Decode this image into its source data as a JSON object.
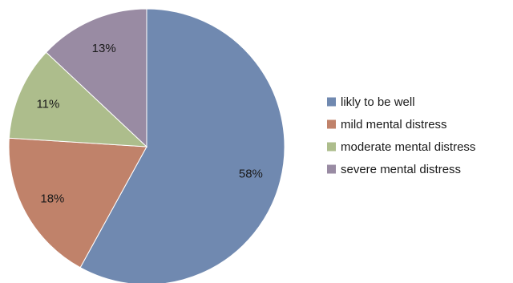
{
  "chart_data": {
    "type": "pie",
    "title": "",
    "legend_position": "right",
    "start_angle_deg": 0,
    "direction": "clockwise",
    "slices": [
      {
        "name": "likly to be well",
        "value": 58,
        "label": "58%",
        "color": "#7089b0"
      },
      {
        "name": "mild mental distress",
        "value": 18,
        "label": "18%",
        "color": "#c0826a"
      },
      {
        "name": "moderate mental distress",
        "value": 11,
        "label": "11%",
        "color": "#adbd8c"
      },
      {
        "name": "severe mental distress",
        "value": 13,
        "label": "13%",
        "color": "#998ba3"
      }
    ]
  }
}
